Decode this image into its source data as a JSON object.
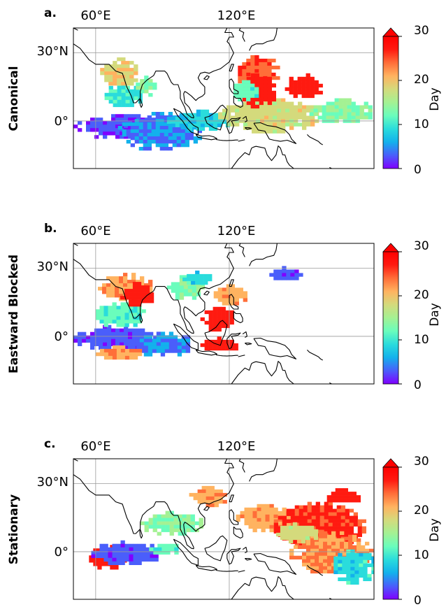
{
  "colormap": [
    "#8000ff",
    "#4a5efb",
    "#13b1ec",
    "#2adcdc",
    "#6afdbc",
    "#a4f193",
    "#d4da7c",
    "#ffb360",
    "#ff6e39",
    "#ff1a10",
    "#ff0000"
  ],
  "colorbar": {
    "label": "Day",
    "ticks": [
      "0",
      "10",
      "20",
      "30"
    ],
    "vmin": 0,
    "vmax": 30,
    "extend": "max"
  },
  "map_axes": {
    "lon_range": [
      50,
      185
    ],
    "lat_range": [
      -21,
      41
    ],
    "lon_ticks": [
      {
        "value": 60,
        "label": "60°E"
      },
      {
        "value": 120,
        "label": "120°E"
      }
    ],
    "lat_ticks": [
      {
        "value": 30,
        "label": "30°N"
      },
      {
        "value": 0,
        "label": "0°"
      }
    ]
  },
  "panels": [
    {
      "letter": "a.",
      "row_label": "Canonical",
      "clusters": [
        {
          "lon": 72,
          "lat": -2,
          "rlon": 22,
          "rlat": 5,
          "day": 2,
          "seed": 11
        },
        {
          "lon": 88,
          "lat": -4,
          "rlon": 18,
          "rlat": 8,
          "day": 5,
          "seed": 12
        },
        {
          "lon": 106,
          "lat": 1,
          "rlon": 14,
          "rlat": 4,
          "day": 9,
          "seed": 13
        },
        {
          "lon": 72,
          "lat": 12,
          "rlon": 8,
          "rlat": 5,
          "day": 11,
          "seed": 14
        },
        {
          "lon": 70,
          "lat": 22,
          "rlon": 8,
          "rlat": 6,
          "day": 21,
          "seed": 15
        },
        {
          "lon": 82,
          "lat": 16,
          "rlon": 4,
          "rlat": 4,
          "day": 15,
          "seed": 16
        },
        {
          "lon": 137,
          "lat": 3,
          "rlon": 22,
          "rlat": 7,
          "day": 20,
          "seed": 17
        },
        {
          "lon": 170,
          "lat": 5,
          "rlon": 14,
          "rlat": 5,
          "day": 15,
          "seed": 18
        },
        {
          "lon": 132,
          "lat": 22,
          "rlon": 10,
          "rlat": 7,
          "day": 27,
          "seed": 19
        },
        {
          "lon": 132,
          "lat": 14,
          "rlon": 8,
          "rlat": 7,
          "day": 31,
          "seed": 20
        },
        {
          "lon": 153,
          "lat": 16,
          "rlon": 8,
          "rlat": 5,
          "day": 31,
          "seed": 21
        },
        {
          "lon": 126,
          "lat": 14,
          "rlon": 6,
          "rlat": 4,
          "day": 13,
          "seed": 22
        }
      ]
    },
    {
      "letter": "b.",
      "row_label": "Eastward Blocked",
      "clusters": [
        {
          "lon": 68,
          "lat": 0,
          "rlon": 18,
          "rlat": 5,
          "day": 3,
          "seed": 31
        },
        {
          "lon": 90,
          "lat": -3,
          "rlon": 14,
          "rlat": 5,
          "day": 5,
          "seed": 32
        },
        {
          "lon": 70,
          "lat": 10,
          "rlon": 12,
          "rlat": 5,
          "day": 13,
          "seed": 33
        },
        {
          "lon": 73,
          "lat": 22,
          "rlon": 12,
          "rlat": 6,
          "day": 24,
          "seed": 34
        },
        {
          "lon": 78,
          "lat": 19,
          "rlon": 7,
          "rlat": 5,
          "day": 31,
          "seed": 35
        },
        {
          "lon": 100,
          "lat": 22,
          "rlon": 8,
          "rlat": 5,
          "day": 15,
          "seed": 36
        },
        {
          "lon": 115,
          "lat": 8,
          "rlon": 8,
          "rlat": 5,
          "day": 31,
          "seed": 37
        },
        {
          "lon": 115,
          "lat": -3,
          "rlon": 8,
          "rlat": 3,
          "day": 31,
          "seed": 38
        },
        {
          "lon": 120,
          "lat": 19,
          "rlon": 7,
          "rlat": 4,
          "day": 24,
          "seed": 39
        },
        {
          "lon": 145,
          "lat": 28,
          "rlon": 7,
          "rlat": 3,
          "day": 3,
          "seed": 40
        },
        {
          "lon": 105,
          "lat": 26,
          "rlon": 6,
          "rlat": 3,
          "day": 10,
          "seed": 41
        },
        {
          "lon": 70,
          "lat": -7,
          "rlon": 10,
          "rlat": 3,
          "day": 24,
          "seed": 42
        }
      ]
    },
    {
      "letter": "c.",
      "row_label": "Stationary",
      "clusters": [
        {
          "lon": 65,
          "lat": -2,
          "rlon": 8,
          "rlat": 5,
          "day": 31,
          "seed": 51
        },
        {
          "lon": 73,
          "lat": 0,
          "rlon": 15,
          "rlat": 5,
          "day": 3,
          "seed": 52
        },
        {
          "lon": 90,
          "lat": 2,
          "rlon": 6,
          "rlat": 3,
          "day": 13,
          "seed": 53
        },
        {
          "lon": 94,
          "lat": 13,
          "rlon": 14,
          "rlat": 5,
          "day": 15,
          "seed": 54
        },
        {
          "lon": 110,
          "lat": 25,
          "rlon": 8,
          "rlat": 4,
          "day": 24,
          "seed": 55
        },
        {
          "lon": 135,
          "lat": 15,
          "rlon": 12,
          "rlat": 6,
          "day": 24,
          "seed": 56
        },
        {
          "lon": 160,
          "lat": 12,
          "rlon": 20,
          "rlat": 10,
          "day": 29,
          "seed": 57
        },
        {
          "lon": 165,
          "lat": 0,
          "rlon": 18,
          "rlat": 9,
          "day": 25,
          "seed": 58
        },
        {
          "lon": 175,
          "lat": -6,
          "rlon": 10,
          "rlat": 7,
          "day": 10,
          "seed": 59
        },
        {
          "lon": 150,
          "lat": 9,
          "rlon": 9,
          "rlat": 4,
          "day": 20,
          "seed": 60
        },
        {
          "lon": 170,
          "lat": 25,
          "rlon": 8,
          "rlat": 3,
          "day": 31,
          "seed": 61
        }
      ]
    }
  ],
  "chart_data": [
    {
      "type": "heatmap",
      "title": "Canonical",
      "panel": "a.",
      "x_ticks": [
        "60°E",
        "120°E"
      ],
      "y_ticks": [
        "30°N",
        "0°"
      ],
      "colorbar_label": "Day",
      "colorbar_range": [
        0,
        30
      ]
    },
    {
      "type": "heatmap",
      "title": "Eastward Blocked",
      "panel": "b.",
      "x_ticks": [
        "60°E",
        "120°E"
      ],
      "y_ticks": [
        "30°N",
        "0°"
      ],
      "colorbar_label": "Day",
      "colorbar_range": [
        0,
        30
      ]
    },
    {
      "type": "heatmap",
      "title": "Stationary",
      "panel": "c.",
      "x_ticks": [
        "60°E",
        "120°E"
      ],
      "y_ticks": [
        "30°N",
        "0°"
      ],
      "colorbar_label": "Day",
      "colorbar_range": [
        0,
        30
      ]
    }
  ]
}
